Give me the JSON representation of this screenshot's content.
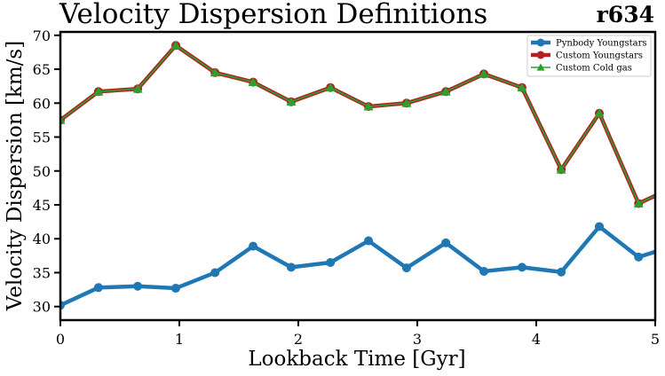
{
  "chart_data": {
    "type": "line",
    "title": "Velocity Dispersion Definitions",
    "corner_label": "r634",
    "xlabel": "Lookback Time [Gyr]",
    "ylabel": "Velocity Dispersion [km/s]",
    "xlim": [
      0,
      5
    ],
    "ylim": [
      28,
      70.5
    ],
    "xticks": [
      0,
      1,
      2,
      3,
      4,
      5
    ],
    "yticks": [
      30,
      35,
      40,
      45,
      50,
      55,
      60,
      65,
      70
    ],
    "grid": false,
    "legend_position": "top-right",
    "x": [
      0,
      0.32,
      0.65,
      0.97,
      1.3,
      1.62,
      1.94,
      2.27,
      2.59,
      2.91,
      3.24,
      3.56,
      3.88,
      4.21,
      4.53,
      4.86,
      5.18
    ],
    "series": [
      {
        "name": "Pynbody Youngstars",
        "color": "#1f77b4",
        "marker": "circle",
        "values": [
          30.2,
          32.8,
          33.0,
          32.7,
          35.0,
          38.9,
          35.8,
          36.5,
          39.7,
          35.7,
          39.4,
          35.2,
          35.8,
          35.1,
          41.8,
          37.3,
          39.1
        ]
      },
      {
        "name": "Custom Youngstars",
        "color": "#b22222",
        "marker": "circle",
        "values": [
          57.5,
          61.7,
          62.1,
          68.5,
          64.5,
          63.1,
          60.2,
          62.3,
          59.5,
          60.0,
          61.7,
          64.3,
          62.3,
          50.2,
          58.5,
          45.2,
          47.8
        ]
      },
      {
        "name": "Custom Cold gas",
        "color": "#2ca02c",
        "marker": "triangle",
        "values": [
          57.5,
          61.7,
          62.1,
          68.5,
          64.5,
          63.1,
          60.2,
          62.3,
          59.5,
          60.0,
          61.7,
          64.3,
          62.3,
          50.2,
          58.5,
          45.2,
          47.8
        ]
      }
    ],
    "legend_line_color": "#6b6b2a"
  }
}
